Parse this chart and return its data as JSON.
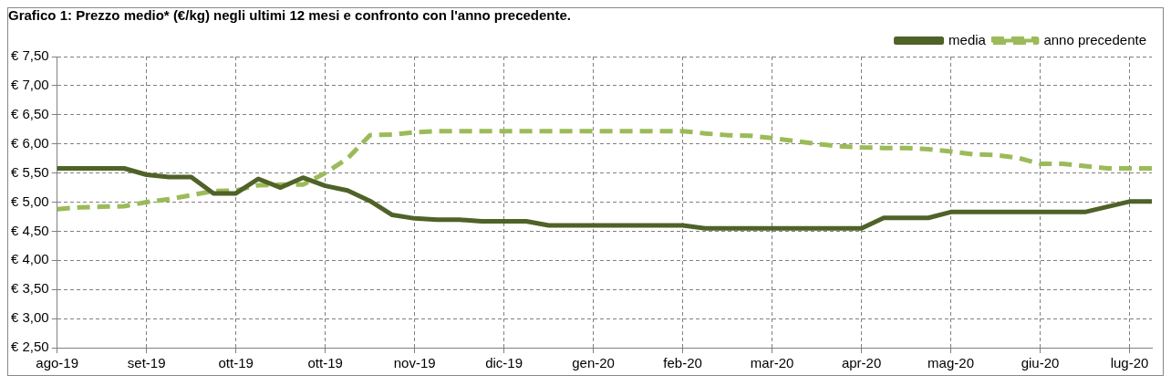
{
  "chart_data": {
    "type": "line",
    "title": "Grafico 1: Prezzo medio* (€/kg) negli ultimi 12 mesi e confronto con l'anno precedente.",
    "categories": [
      "ago-19",
      null,
      null,
      null,
      "set-19",
      null,
      null,
      null,
      "ott-19",
      null,
      null,
      null,
      "ott-19",
      null,
      null,
      null,
      "nov-19",
      null,
      null,
      null,
      "dic-19",
      null,
      null,
      null,
      "gen-20",
      null,
      null,
      null,
      "feb-20",
      null,
      null,
      null,
      "mar-20",
      null,
      null,
      null,
      "apr-20",
      null,
      null,
      null,
      "mag-20",
      null,
      null,
      null,
      "giu-20",
      null,
      null,
      null,
      "lug-20",
      null
    ],
    "series": [
      {
        "name": "media",
        "color": "#4f6228",
        "line_style": "solid",
        "values": [
          5.58,
          5.58,
          5.58,
          5.58,
          5.47,
          5.43,
          5.43,
          5.15,
          5.15,
          5.4,
          5.25,
          5.42,
          5.28,
          5.2,
          5.02,
          4.78,
          4.72,
          4.7,
          4.7,
          4.67,
          4.67,
          4.67,
          4.6,
          4.6,
          4.6,
          4.6,
          4.6,
          4.6,
          4.6,
          4.55,
          4.55,
          4.55,
          4.55,
          4.55,
          4.55,
          4.55,
          4.55,
          4.73,
          4.73,
          4.73,
          4.83,
          4.83,
          4.83,
          4.83,
          4.83,
          4.83,
          4.83,
          4.92,
          5.01,
          5.01
        ]
      },
      {
        "name": "anno precedente",
        "color": "#9bbb59",
        "line_style": "dashed",
        "values": [
          4.88,
          4.91,
          4.92,
          4.93,
          5.0,
          5.05,
          5.12,
          5.19,
          5.2,
          5.29,
          5.3,
          5.3,
          5.5,
          5.75,
          6.15,
          6.16,
          6.2,
          6.22,
          6.22,
          6.22,
          6.22,
          6.22,
          6.22,
          6.22,
          6.22,
          6.22,
          6.22,
          6.22,
          6.22,
          6.18,
          6.15,
          6.14,
          6.1,
          6.05,
          6.0,
          5.96,
          5.94,
          5.93,
          5.93,
          5.91,
          5.87,
          5.82,
          5.81,
          5.76,
          5.66,
          5.66,
          5.62,
          5.58,
          5.58,
          5.58
        ]
      }
    ],
    "ylim": [
      2.5,
      7.5
    ],
    "yticks": [
      {
        "value": 2.5,
        "label": "€ 2,50"
      },
      {
        "value": 3,
        "label": "€ 3,00"
      },
      {
        "value": 3.5,
        "label": "€ 3,50"
      },
      {
        "value": 4,
        "label": "€ 4,00"
      },
      {
        "value": 4.5,
        "label": "€ 4,50"
      },
      {
        "value": 5,
        "label": "€ 5,00"
      },
      {
        "value": 5.5,
        "label": "€ 5,50"
      },
      {
        "value": 6,
        "label": "€ 6,00"
      },
      {
        "value": 6.5,
        "label": "€ 6,50"
      },
      {
        "value": 7,
        "label": "€ 7,00"
      },
      {
        "value": 7.5,
        "label": "€ 7,50"
      }
    ],
    "grid": true,
    "legend": "top right",
    "marker": "none"
  }
}
